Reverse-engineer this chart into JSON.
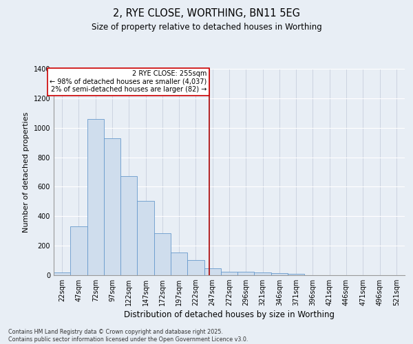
{
  "title1": "2, RYE CLOSE, WORTHING, BN11 5EG",
  "title2": "Size of property relative to detached houses in Worthing",
  "xlabel": "Distribution of detached houses by size in Worthing",
  "ylabel": "Number of detached properties",
  "bar_labels": [
    "22sqm",
    "47sqm",
    "72sqm",
    "97sqm",
    "122sqm",
    "147sqm",
    "172sqm",
    "197sqm",
    "222sqm",
    "247sqm",
    "272sqm",
    "296sqm",
    "321sqm",
    "346sqm",
    "371sqm",
    "396sqm",
    "421sqm",
    "446sqm",
    "471sqm",
    "496sqm",
    "521sqm"
  ],
  "bar_values": [
    20,
    330,
    1060,
    930,
    670,
    505,
    285,
    155,
    105,
    45,
    25,
    25,
    20,
    12,
    8,
    0,
    0,
    0,
    0,
    0,
    0
  ],
  "bar_color": "#cfdded",
  "bar_edge_color": "#6699cc",
  "background_color": "#e8eef5",
  "grid_color": "#d0d8e4",
  "annotation_text": "2 RYE CLOSE: 255sqm\n← 98% of detached houses are smaller (4,037)\n2% of semi-detached houses are larger (82) →",
  "annotation_box_color": "#ffffff",
  "annotation_box_edge": "#cc0000",
  "red_line_color": "#aa0000",
  "ylim": [
    0,
    1400
  ],
  "yticks": [
    0,
    200,
    400,
    600,
    800,
    1000,
    1200,
    1400
  ],
  "footer": "Contains HM Land Registry data © Crown copyright and database right 2025.\nContains public sector information licensed under the Open Government Licence v3.0.",
  "title_fontsize": 10.5,
  "subtitle_fontsize": 8.5,
  "tick_fontsize": 7,
  "ylabel_fontsize": 8,
  "xlabel_fontsize": 8.5
}
